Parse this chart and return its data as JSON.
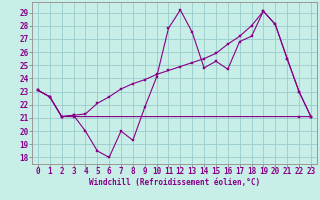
{
  "xlabel": "Windchill (Refroidissement éolien,°C)",
  "background_color": "#c8eee8",
  "grid_color": "#99cccc",
  "line_color": "#880088",
  "xlim_min": -0.5,
  "xlim_max": 23.5,
  "ylim_min": 17.5,
  "ylim_max": 29.8,
  "yticks": [
    18,
    19,
    20,
    21,
    22,
    23,
    24,
    25,
    26,
    27,
    28,
    29
  ],
  "xticks": [
    0,
    1,
    2,
    3,
    4,
    5,
    6,
    7,
    8,
    9,
    10,
    11,
    12,
    13,
    14,
    15,
    16,
    17,
    18,
    19,
    20,
    21,
    22,
    23
  ],
  "line1_x": [
    0,
    1,
    2,
    3,
    4,
    5,
    6,
    7,
    8,
    9,
    10,
    11,
    12,
    13,
    14,
    15,
    16,
    17,
    18,
    19,
    20,
    21,
    22,
    23
  ],
  "line1_y": [
    23.1,
    22.6,
    21.1,
    21.2,
    20.0,
    18.5,
    18.0,
    20.0,
    19.3,
    21.8,
    24.1,
    27.8,
    29.2,
    27.5,
    24.8,
    25.3,
    24.7,
    26.8,
    27.2,
    29.1,
    28.1,
    25.5,
    23.0,
    21.1
  ],
  "line2_x": [
    0,
    1,
    2,
    3,
    22,
    23
  ],
  "line2_y": [
    23.1,
    22.6,
    21.1,
    21.1,
    21.1,
    21.1
  ],
  "line3_x": [
    0,
    1,
    2,
    3,
    4,
    5,
    6,
    7,
    8,
    9,
    10,
    11,
    12,
    13,
    14,
    15,
    16,
    17,
    18,
    19,
    20,
    21,
    22,
    23
  ],
  "line3_y": [
    23.1,
    22.6,
    21.1,
    21.2,
    21.3,
    22.1,
    22.6,
    23.2,
    23.6,
    23.9,
    24.3,
    24.6,
    24.9,
    25.2,
    25.5,
    25.9,
    26.6,
    27.2,
    28.0,
    29.1,
    28.1,
    25.5,
    23.0,
    21.1
  ],
  "tick_fontsize": 5.5,
  "xlabel_fontsize": 5.5
}
